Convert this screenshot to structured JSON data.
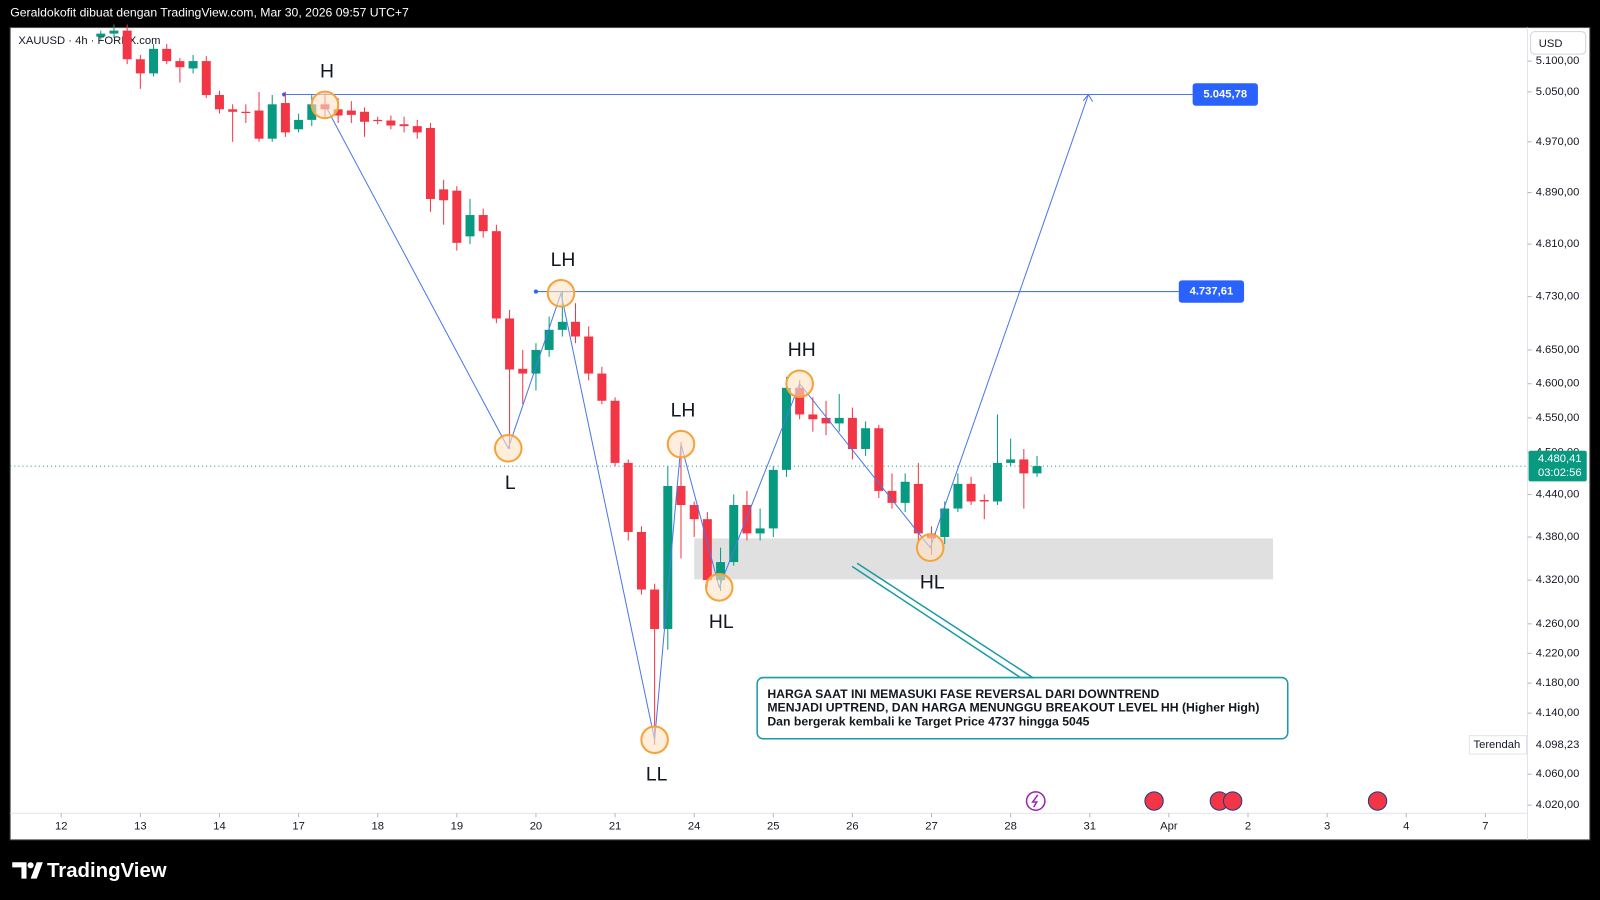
{
  "chart_data": {
    "type": "candlestick",
    "header": "Geraldokofit dibuat dengan TradingView.com, Mar 30, 2026 09:57 UTC+7",
    "symbol": "XAUUSD · 4h · FOREX.com",
    "currency": "USD",
    "brand": "TradingView",
    "log_scale": true,
    "up_color": "#089981",
    "down_color": "#f23645",
    "line_color": "#4a78e8",
    "level_color": "#2962ff",
    "ylim": [
      3977,
      5155
    ],
    "yticks": [
      {
        "value": 5100,
        "label": "5.100,00"
      },
      {
        "value": 5050,
        "label": "5.050,00"
      },
      {
        "value": 4970,
        "label": "4.970,00"
      },
      {
        "value": 4890,
        "label": "4.890,00"
      },
      {
        "value": 4810,
        "label": "4.810,00"
      },
      {
        "value": 4730,
        "label": "4.730,00"
      },
      {
        "value": 4650,
        "label": "4.650,00"
      },
      {
        "value": 4600,
        "label": "4.600,00"
      },
      {
        "value": 4550,
        "label": "4.550,00"
      },
      {
        "value": 4500,
        "label": "4.500,00"
      },
      {
        "value": 4440,
        "label": "4.440,00"
      },
      {
        "value": 4380,
        "label": "4.380,00"
      },
      {
        "value": 4320,
        "label": "4.320,00"
      },
      {
        "value": 4260,
        "label": "4.260,00"
      },
      {
        "value": 4220,
        "label": "4.220,00"
      },
      {
        "value": 4180,
        "label": "4.180,00"
      },
      {
        "value": 4140,
        "label": "4.140,00"
      },
      {
        "value": 4060,
        "label": "4.060,00"
      },
      {
        "value": 4020,
        "label": "4.020,00"
      }
    ],
    "xlim": [
      -3.87,
      111.2
    ],
    "xticks": [
      {
        "value": 0,
        "label": "12"
      },
      {
        "value": 6,
        "label": "13"
      },
      {
        "value": 12,
        "label": "14"
      },
      {
        "value": 18,
        "label": "17"
      },
      {
        "value": 24,
        "label": "18"
      },
      {
        "value": 30,
        "label": "19"
      },
      {
        "value": 36,
        "label": "20"
      },
      {
        "value": 42,
        "label": "21"
      },
      {
        "value": 48,
        "label": "24"
      },
      {
        "value": 54,
        "label": "25"
      },
      {
        "value": 60,
        "label": "26"
      },
      {
        "value": 66,
        "label": "27"
      },
      {
        "value": 72,
        "label": "28"
      },
      {
        "value": 78,
        "label": "31"
      },
      {
        "value": 84,
        "label": "Apr"
      },
      {
        "value": 90,
        "label": "2"
      },
      {
        "value": 96,
        "label": "3"
      },
      {
        "value": 102,
        "label": "4"
      },
      {
        "value": 108,
        "label": "7"
      }
    ],
    "x": [
      3,
      4,
      5,
      6,
      7,
      8,
      9,
      10,
      11,
      12,
      13,
      14,
      15,
      16,
      17,
      18,
      19,
      20,
      21,
      22,
      23,
      24,
      25,
      26,
      27,
      28,
      29,
      30,
      31,
      32,
      33,
      34,
      35,
      36,
      37,
      38,
      39,
      40,
      41,
      42,
      43,
      44,
      45,
      46,
      47,
      48,
      49,
      50,
      51,
      52,
      53,
      54,
      55,
      56,
      57,
      58,
      59,
      60,
      61,
      62,
      63,
      64,
      65,
      66,
      67,
      68,
      69,
      70,
      71,
      72,
      73,
      74
    ],
    "open": [
      5140,
      5145,
      5150,
      5103,
      5080,
      5120,
      5100,
      5088,
      5100,
      5045,
      5022,
      5018,
      5020,
      4975,
      5032,
      4990,
      5005,
      5030,
      5022,
      5020,
      5018,
      5005,
      5004,
      4998,
      4995,
      4992,
      4895,
      4893,
      4822,
      4855,
      4830,
      4697,
      4622,
      4615,
      4650,
      4680,
      4692,
      4670,
      4615,
      4575,
      4485,
      4387,
      4307,
      4253,
      4452,
      4425,
      4405,
      4320,
      4345,
      4425,
      4385,
      4392,
      4475,
      4594,
      4555,
      4550,
      4542,
      4550,
      4505,
      4535,
      4445,
      4428,
      4455,
      4385,
      4380,
      4420,
      4455,
      4432,
      4430,
      4485,
      4490,
      4470
    ],
    "high": [
      5150,
      5160,
      5160,
      5110,
      5128,
      5128,
      5105,
      5110,
      5108,
      5052,
      5030,
      5030,
      5050,
      5045,
      5050,
      5015,
      5045,
      5048,
      5040,
      5035,
      5025,
      5010,
      5012,
      5010,
      5005,
      5000,
      4910,
      4900,
      4880,
      4865,
      4840,
      4710,
      4650,
      4660,
      4700,
      4738,
      4720,
      4685,
      4625,
      4580,
      4490,
      4395,
      4315,
      4480,
      4515,
      4430,
      4415,
      4365,
      4440,
      4445,
      4420,
      4480,
      4610,
      4605,
      4580,
      4575,
      4585,
      4565,
      4545,
      4540,
      4470,
      4470,
      4485,
      4395,
      4430,
      4470,
      4465,
      4440,
      4555,
      4520,
      4505,
      4495
    ],
    "low": [
      5135,
      5138,
      5095,
      5055,
      5075,
      5095,
      5065,
      5080,
      5040,
      5015,
      4970,
      5000,
      4970,
      4970,
      4978,
      4985,
      4995,
      5010,
      5000,
      5000,
      4978,
      4998,
      4990,
      4985,
      4975,
      4860,
      4840,
      4800,
      4810,
      4820,
      4690,
      4505,
      4570,
      4590,
      4640,
      4670,
      4660,
      4605,
      4570,
      4480,
      4375,
      4300,
      4098.23,
      4225,
      4350,
      4380,
      4310,
      4305,
      4340,
      4375,
      4375,
      4380,
      4465,
      4548,
      4530,
      4525,
      4530,
      4490,
      4495,
      4435,
      4420,
      4415,
      4375,
      4355,
      4370,
      4415,
      4425,
      4405,
      4425,
      4480,
      4420,
      4465
    ],
    "close": [
      5145,
      5150,
      5103,
      5080,
      5120,
      5100,
      5090,
      5100,
      5045,
      5022,
      5018,
      5016,
      4975,
      5030,
      4985,
      5005,
      5030,
      5022,
      5012,
      5013,
      5002,
      5003,
      4996,
      4995,
      4985,
      4880,
      4878,
      4812,
      4855,
      4830,
      4697,
      4621,
      4615,
      4650,
      4680,
      4692,
      4670,
      4615,
      4575,
      4485,
      4387,
      4307,
      4253,
      4452,
      4425,
      4405,
      4320,
      4345,
      4425,
      4385,
      4392,
      4475,
      4594,
      4555,
      4548,
      4542,
      4550,
      4505,
      4535,
      4445,
      4428,
      4458,
      4385,
      4378,
      4420,
      4455,
      4430,
      4430,
      4485,
      4490,
      4470,
      4480.41
    ],
    "levels": [
      {
        "value": 5045.78,
        "label": "5.045,78",
        "x_range": [
          16.9,
          85.8
        ]
      },
      {
        "value": 4737.61,
        "label": "4.737,61",
        "x_range": [
          36,
          84.75
        ]
      }
    ],
    "zone": {
      "x_range": [
        48,
        91.9
      ],
      "y_range": [
        4321,
        4378
      ]
    },
    "annotations": [
      {
        "label": "H",
        "x": 20,
        "y": 5029
      },
      {
        "label": "L",
        "x": 33.9,
        "y": 4506
      },
      {
        "label": "LH",
        "x": 37.9,
        "y": 4735
      },
      {
        "label": "LL",
        "x": 45,
        "y": 4105
      },
      {
        "label": "LH",
        "x": 47,
        "y": 4512
      },
      {
        "label": "HL",
        "x": 49.9,
        "y": 4310
      },
      {
        "label": "HH",
        "x": 56,
        "y": 4600
      },
      {
        "label": "HL",
        "x": 65.9,
        "y": 4365
      }
    ],
    "target": {
      "x": 77.9,
      "y": 5045.78
    },
    "last_price": {
      "value": 4480.41,
      "label": "4.480,41",
      "countdown": "03:02:56"
    },
    "low_marker": {
      "text": "Terendah",
      "value": 4098.23,
      "label": "4.098,23"
    },
    "callout": [
      "HARGA SAAT INI MEMASUKI FASE REVERSAL DARI DOWNTREND",
      "MENJADI UPTREND, DAN HARGA MENUNGGU BREAKOUT LEVEL HH (Higher High)",
      "Dan bergerak kembali ke Target Price 4737 hingga 5045"
    ]
  }
}
